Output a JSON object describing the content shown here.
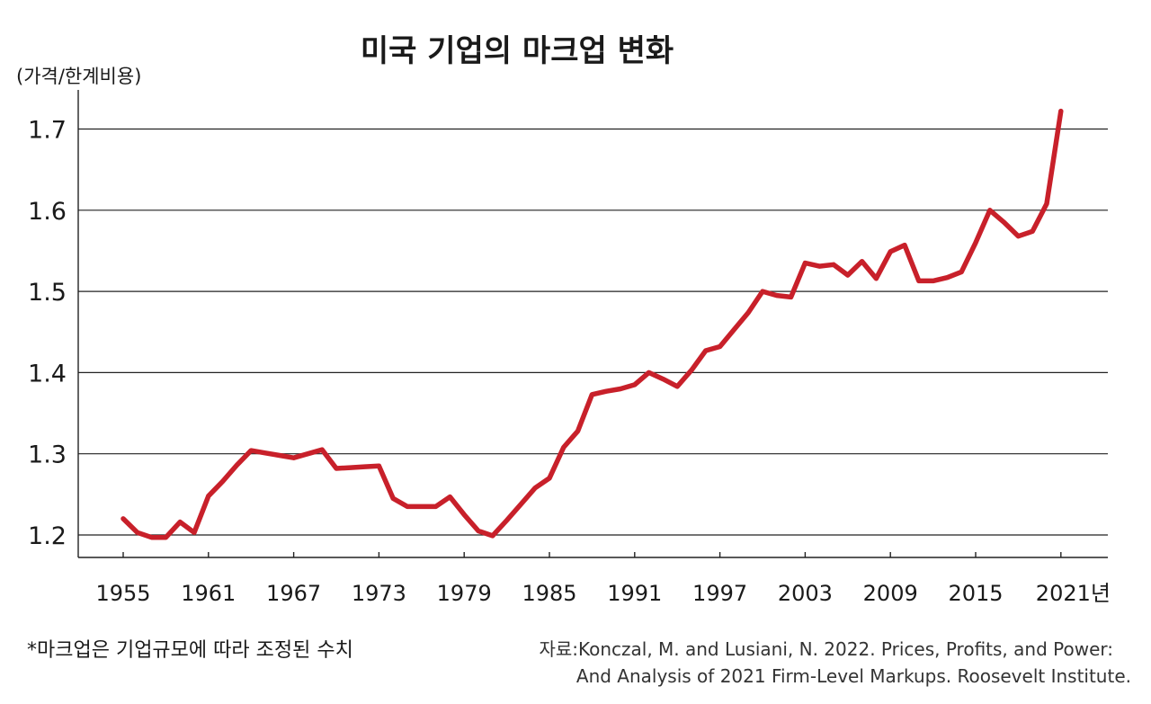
{
  "chart_data": {
    "type": "line",
    "title": "미국 기업의 마크업 변화",
    "ylabel": "(가격/한계비용)",
    "xlabel": "",
    "ylim": [
      1.15,
      1.75
    ],
    "xlim": [
      1950,
      2026
    ],
    "yticks": [
      "1.2",
      "1.3",
      "1.4",
      "1.5",
      "1.6",
      "1.7"
    ],
    "xticks": [
      "1955",
      "1961",
      "1967",
      "1973",
      "1979",
      "1985",
      "1991",
      "1997",
      "2003",
      "2009",
      "2015",
      "2021년"
    ],
    "line_color": "#c8202a",
    "grid": true,
    "series": [
      {
        "name": "markup",
        "x": [
          1955,
          1956,
          1957,
          1958,
          1959,
          1960,
          1961,
          1962,
          1963,
          1964,
          1965,
          1966,
          1967,
          1968,
          1969,
          1970,
          1971,
          1972,
          1973,
          1974,
          1975,
          1976,
          1977,
          1978,
          1979,
          1980,
          1981,
          1982,
          1983,
          1984,
          1985,
          1986,
          1987,
          1988,
          1989,
          1990,
          1991,
          1992,
          1993,
          1994,
          1995,
          1996,
          1997,
          1998,
          1999,
          2000,
          2001,
          2002,
          2003,
          2004,
          2005,
          2006,
          2007,
          2008,
          2009,
          2010,
          2011,
          2012,
          2013,
          2014,
          2015,
          2016,
          2017,
          2018,
          2019,
          2020,
          2021
        ],
        "y": [
          1.22,
          1.203,
          1.197,
          1.197,
          1.216,
          1.203,
          1.248,
          1.266,
          1.286,
          1.304,
          1.301,
          1.298,
          1.295,
          1.3,
          1.305,
          1.282,
          1.283,
          1.284,
          1.285,
          1.245,
          1.235,
          1.235,
          1.235,
          1.247,
          1.225,
          1.205,
          1.199,
          1.218,
          1.238,
          1.258,
          1.27,
          1.308,
          1.328,
          1.373,
          1.377,
          1.38,
          1.385,
          1.4,
          1.392,
          1.383,
          1.403,
          1.427,
          1.432,
          1.453,
          1.474,
          1.5,
          1.495,
          1.493,
          1.535,
          1.531,
          1.533,
          1.52,
          1.537,
          1.516,
          1.549,
          1.557,
          1.513,
          1.513,
          1.517,
          1.524,
          1.56,
          1.6,
          1.585,
          1.568,
          1.574,
          1.608,
          1.722
        ]
      }
    ]
  },
  "footnote": "*마크업은 기업규모에 따라 조정된 수치",
  "source_line1": "자료:Konczal, M. and Lusiani, N. 2022. Prices, Profits, and Power:",
  "source_line2": "And Analysis of 2021 Firm-Level Markups. Roosevelt Institute."
}
